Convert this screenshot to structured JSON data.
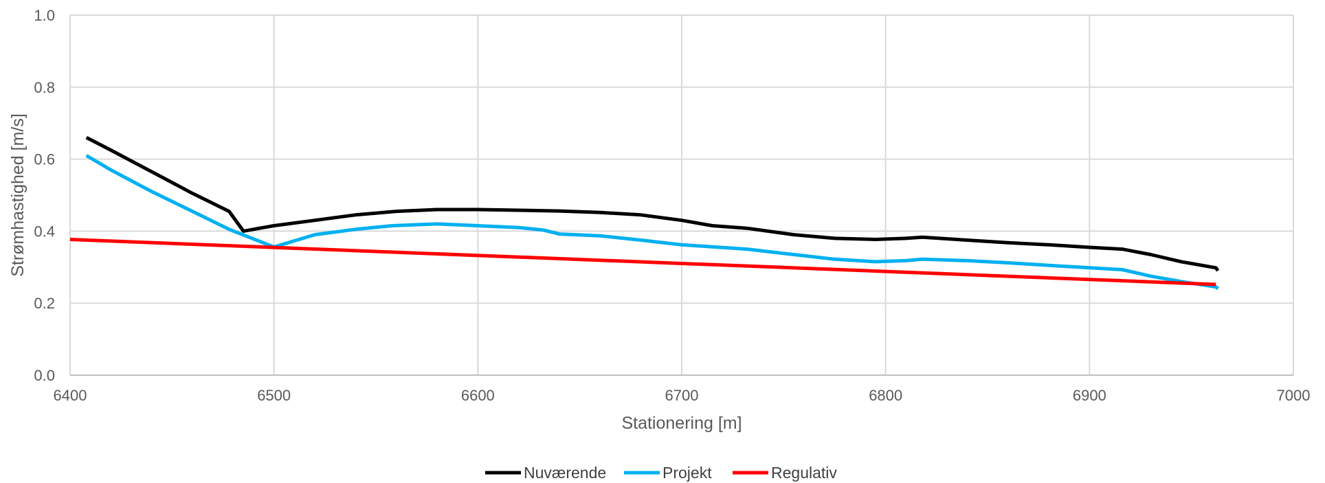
{
  "chart_data": {
    "type": "line",
    "xlabel": "Stationering [m]",
    "ylabel": "Strømhastighed [m/s]",
    "xlim": [
      6400,
      7000
    ],
    "ylim": [
      0.0,
      1.0
    ],
    "xticks": [
      6400,
      6500,
      6600,
      6700,
      6800,
      6900,
      7000
    ],
    "yticks": [
      "0.0",
      "0.2",
      "0.4",
      "0.6",
      "0.8",
      "1.0"
    ],
    "grid": true,
    "legend_position": "bottom",
    "series": [
      {
        "name": "Nuværende",
        "color": "#000000",
        "x": [
          6408,
          6420,
          6440,
          6460,
          6478,
          6485,
          6500,
          6520,
          6540,
          6560,
          6580,
          6600,
          6620,
          6640,
          6660,
          6680,
          6700,
          6715,
          6732,
          6755,
          6775,
          6795,
          6810,
          6818,
          6840,
          6860,
          6880,
          6900,
          6916,
          6930,
          6945,
          6962,
          6963
        ],
        "y": [
          0.66,
          0.625,
          0.565,
          0.505,
          0.455,
          0.4,
          0.415,
          0.43,
          0.445,
          0.455,
          0.46,
          0.46,
          0.458,
          0.456,
          0.452,
          0.445,
          0.43,
          0.415,
          0.408,
          0.39,
          0.38,
          0.377,
          0.38,
          0.383,
          0.375,
          0.368,
          0.362,
          0.355,
          0.35,
          0.335,
          0.315,
          0.298,
          0.29
        ]
      },
      {
        "name": "Projekt",
        "color": "#00b0f0",
        "x": [
          6408,
          6420,
          6440,
          6460,
          6478,
          6500,
          6520,
          6540,
          6558,
          6580,
          6600,
          6620,
          6632,
          6640,
          6660,
          6680,
          6700,
          6732,
          6755,
          6775,
          6795,
          6810,
          6818,
          6840,
          6860,
          6880,
          6900,
          6916,
          6930,
          6945,
          6962,
          6963
        ],
        "y": [
          0.61,
          0.57,
          0.51,
          0.455,
          0.405,
          0.356,
          0.39,
          0.405,
          0.415,
          0.42,
          0.415,
          0.41,
          0.403,
          0.392,
          0.387,
          0.375,
          0.362,
          0.35,
          0.335,
          0.322,
          0.315,
          0.318,
          0.322,
          0.318,
          0.312,
          0.305,
          0.298,
          0.293,
          0.275,
          0.26,
          0.245,
          0.24
        ]
      },
      {
        "name": "Regulativ",
        "color": "#ff0000",
        "x": [
          6400,
          6962
        ],
        "y": [
          0.377,
          0.252
        ]
      }
    ]
  }
}
